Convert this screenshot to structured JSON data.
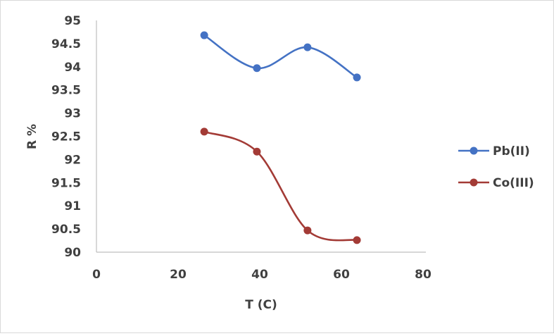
{
  "chart_data": {
    "type": "line",
    "title": "",
    "xlabel": "T (C)",
    "ylabel": "R %",
    "xlim": [
      0,
      80
    ],
    "ylim": [
      90,
      95
    ],
    "xticks": [
      0,
      20,
      40,
      60,
      80
    ],
    "yticks": [
      90,
      90.5,
      91,
      91.5,
      92,
      92.5,
      93,
      93.5,
      94,
      94.5,
      95
    ],
    "xtick_labels": [
      "0",
      "20",
      "40",
      "60",
      "80"
    ],
    "ytick_labels": [
      "90",
      "90.5",
      "91",
      "91.5",
      "92",
      "92.5",
      "93",
      "93.5",
      "94",
      "94.5",
      "95"
    ],
    "grid": false,
    "smooth": true,
    "legend_position": "right",
    "series": [
      {
        "name": "Pb(II)",
        "color": "#4472c4",
        "x": [
          26.4,
          39.3,
          51.7,
          63.8
        ],
        "y": [
          94.68,
          93.97,
          94.42,
          93.77
        ]
      },
      {
        "name": "Co(III)",
        "color": "#a33b36",
        "x": [
          26.4,
          39.3,
          51.7,
          63.8
        ],
        "y": [
          92.6,
          92.17,
          90.47,
          90.26
        ]
      }
    ]
  },
  "legend": {
    "items": [
      {
        "label": "Pb(II)",
        "color": "#4472c4"
      },
      {
        "label": "Co(III)",
        "color": "#a33b36"
      }
    ]
  }
}
